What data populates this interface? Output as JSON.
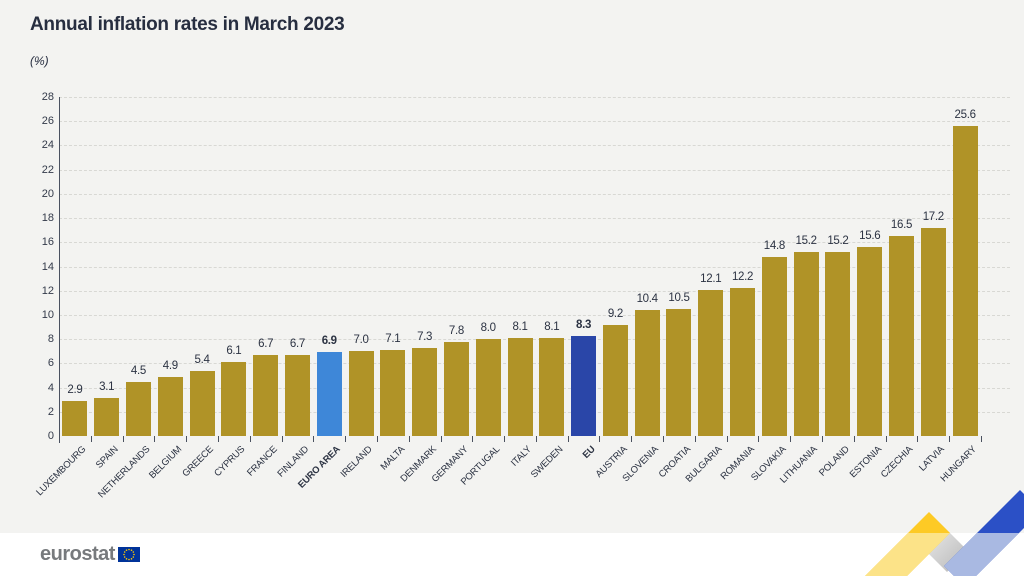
{
  "header": {
    "title": "Annual inflation rates in March 2023",
    "unit_label": "(%)"
  },
  "chart_data": {
    "type": "bar",
    "title": "Annual inflation rates in March 2023",
    "ylabel": "(%)",
    "ylim": [
      0,
      28
    ],
    "ytick_step": 2,
    "grid": "horizontal-dashed",
    "legend_position": "none",
    "categories": [
      "LUXEMBOURG",
      "SPAIN",
      "NETHERLANDS",
      "BELGIUM",
      "GREECE",
      "CYPRUS",
      "FRANCE",
      "FINLAND",
      "EURO AREA",
      "IRELAND",
      "MALTA",
      "DENMARK",
      "GERMANY",
      "PORTUGAL",
      "ITALY",
      "SWEDEN",
      "EU",
      "AUSTRIA",
      "SLOVENIA",
      "CROATIA",
      "BULGARIA",
      "ROMANIA",
      "SLOVAKIA",
      "LITHUANIA",
      "POLAND",
      "ESTONIA",
      "CZECHIA",
      "LATVIA",
      "HUNGARY"
    ],
    "values": [
      2.9,
      3.1,
      4.5,
      4.9,
      5.4,
      6.1,
      6.7,
      6.7,
      6.9,
      7.0,
      7.1,
      7.3,
      7.8,
      8.0,
      8.1,
      8.1,
      8.3,
      9.2,
      10.4,
      10.5,
      12.1,
      12.2,
      14.8,
      15.2,
      15.2,
      15.6,
      16.5,
      17.2,
      25.6
    ],
    "bold_categories": [
      "EURO AREA",
      "EU"
    ],
    "colors": {
      "default_bar": "#b09327",
      "euro_area_bar": "#3e87d8",
      "eu_bar": "#2a46a8"
    }
  },
  "footer": {
    "logo_text": "eurostat"
  },
  "theme": {
    "background": "#f3f3f1",
    "footer_background": "#ffffff",
    "text_dark": "#272e40",
    "axis_color": "#4a5160",
    "gridline_color": "#d8d8d4",
    "logo_gray": "#777a7d",
    "flag_blue": "#003399",
    "flag_star_yellow": "#ffcc00",
    "ribbon_yellow": "#fdca25",
    "ribbon_blue": "#2b50c6"
  }
}
